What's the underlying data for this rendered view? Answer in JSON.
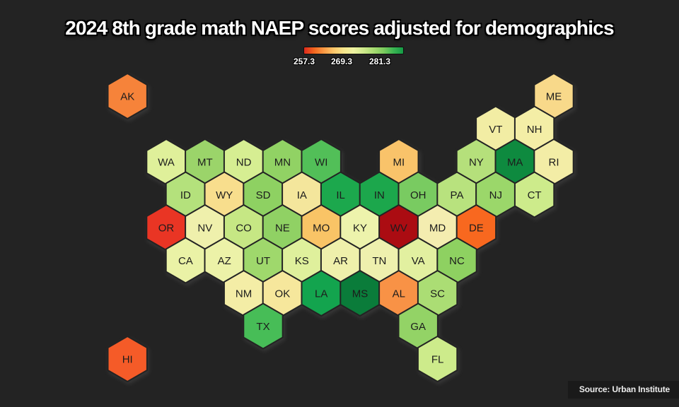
{
  "title": "2024 8th grade math NAEP scores adjusted for demographics",
  "source": "Source: Urban Institute",
  "legend": {
    "ticks": [
      "257.3",
      "269.3",
      "281.3"
    ],
    "gradient_colors": [
      "#dd2a1d",
      "#f2661f",
      "#fa9a44",
      "#fdc76b",
      "#f6e68c",
      "#eef2a2",
      "#cfe98c",
      "#a8db72",
      "#7ecb5f",
      "#3cb552",
      "#149a46"
    ]
  },
  "colors": {
    "background": "#232323",
    "hex_border": "#232323",
    "label_text": "#1c1c1c",
    "title_text": "#ffffff"
  },
  "chart_data": {
    "type": "heatmap",
    "subtype": "hex-tile-cartogram",
    "title": "2024 8th grade math NAEP scores adjusted for demographics",
    "colormap": "red-yellow-green",
    "scale_min": 257.3,
    "scale_mid": 269.3,
    "scale_max": 281.3,
    "values_estimated_from_color_scale": true,
    "states": [
      {
        "abbr": "AK",
        "row": 0,
        "col": 0,
        "color": "#f6833a",
        "score": 262.5
      },
      {
        "abbr": "ME",
        "row": 0,
        "col": 22,
        "color": "#f8d98a",
        "score": 266.5
      },
      {
        "abbr": "VT",
        "row": 1,
        "col": 19,
        "color": "#f2eda4",
        "score": 268.5
      },
      {
        "abbr": "NH",
        "row": 1,
        "col": 21,
        "color": "#f4eea6",
        "score": 268.5
      },
      {
        "abbr": "WA",
        "row": 2,
        "col": 2,
        "color": "#dff09a",
        "score": 270.5
      },
      {
        "abbr": "MT",
        "row": 2,
        "col": 4,
        "color": "#9bd46a",
        "score": 273.5
      },
      {
        "abbr": "ND",
        "row": 2,
        "col": 6,
        "color": "#d6ee92",
        "score": 271
      },
      {
        "abbr": "MN",
        "row": 2,
        "col": 8,
        "color": "#91d264",
        "score": 274
      },
      {
        "abbr": "WI",
        "row": 2,
        "col": 10,
        "color": "#52bf58",
        "score": 276
      },
      {
        "abbr": "MI",
        "row": 2,
        "col": 14,
        "color": "#f9c36a",
        "score": 265.5
      },
      {
        "abbr": "NY",
        "row": 2,
        "col": 18,
        "color": "#b5e07b",
        "score": 272.5
      },
      {
        "abbr": "MA",
        "row": 2,
        "col": 20,
        "color": "#0e8a3f",
        "score": 279.5
      },
      {
        "abbr": "RI",
        "row": 2,
        "col": 22,
        "color": "#f3eda6",
        "score": 268.5
      },
      {
        "abbr": "ID",
        "row": 3,
        "col": 3,
        "color": "#b4e17c",
        "score": 272.5
      },
      {
        "abbr": "WY",
        "row": 3,
        "col": 5,
        "color": "#f8de8d",
        "score": 267
      },
      {
        "abbr": "SD",
        "row": 3,
        "col": 7,
        "color": "#8ed162",
        "score": 274
      },
      {
        "abbr": "IA",
        "row": 3,
        "col": 9,
        "color": "#f4e69c",
        "score": 268
      },
      {
        "abbr": "IL",
        "row": 3,
        "col": 11,
        "color": "#1ca84d",
        "score": 277.5
      },
      {
        "abbr": "IN",
        "row": 3,
        "col": 13,
        "color": "#1ca74c",
        "score": 277.5
      },
      {
        "abbr": "OH",
        "row": 3,
        "col": 15,
        "color": "#79cb61",
        "score": 274.5
      },
      {
        "abbr": "PA",
        "row": 3,
        "col": 17,
        "color": "#b8e27e",
        "score": 272.5
      },
      {
        "abbr": "NJ",
        "row": 3,
        "col": 19,
        "color": "#9bd76a",
        "score": 273.5
      },
      {
        "abbr": "CT",
        "row": 3,
        "col": 21,
        "color": "#cdeb8b",
        "score": 271.5
      },
      {
        "abbr": "OR",
        "row": 4,
        "col": 2,
        "color": "#e93524",
        "score": 259
      },
      {
        "abbr": "NV",
        "row": 4,
        "col": 4,
        "color": "#eff0ac",
        "score": 269.5
      },
      {
        "abbr": "CO",
        "row": 4,
        "col": 6,
        "color": "#c6e784",
        "score": 272
      },
      {
        "abbr": "NE",
        "row": 4,
        "col": 8,
        "color": "#90d164",
        "score": 274
      },
      {
        "abbr": "MO",
        "row": 4,
        "col": 10,
        "color": "#f9c466",
        "score": 265.5
      },
      {
        "abbr": "KY",
        "row": 4,
        "col": 12,
        "color": "#edf3ac",
        "score": 269.5
      },
      {
        "abbr": "WV",
        "row": 4,
        "col": 14,
        "color": "#ab0c12",
        "score": 257.3
      },
      {
        "abbr": "MD",
        "row": 4,
        "col": 16,
        "color": "#f4edb0",
        "score": 269
      },
      {
        "abbr": "DE",
        "row": 4,
        "col": 18,
        "color": "#f8681f",
        "score": 261
      },
      {
        "abbr": "CA",
        "row": 5,
        "col": 3,
        "color": "#eaf2a6",
        "score": 269.5
      },
      {
        "abbr": "AZ",
        "row": 5,
        "col": 5,
        "color": "#ecf2a8",
        "score": 269.5
      },
      {
        "abbr": "UT",
        "row": 5,
        "col": 7,
        "color": "#9fd86c",
        "score": 273.5
      },
      {
        "abbr": "KS",
        "row": 5,
        "col": 9,
        "color": "#dff09c",
        "score": 270.5
      },
      {
        "abbr": "AR",
        "row": 5,
        "col": 11,
        "color": "#eff0ab",
        "score": 269.5
      },
      {
        "abbr": "TN",
        "row": 5,
        "col": 13,
        "color": "#eef0ae",
        "score": 269.5
      },
      {
        "abbr": "VA",
        "row": 5,
        "col": 15,
        "color": "#e2f0a0",
        "score": 270
      },
      {
        "abbr": "NC",
        "row": 5,
        "col": 17,
        "color": "#8ed161",
        "score": 274
      },
      {
        "abbr": "NM",
        "row": 6,
        "col": 6,
        "color": "#f4eda6",
        "score": 268.5
      },
      {
        "abbr": "OK",
        "row": 6,
        "col": 8,
        "color": "#f6e79c",
        "score": 268
      },
      {
        "abbr": "LA",
        "row": 6,
        "col": 10,
        "color": "#13a44e",
        "score": 278
      },
      {
        "abbr": "MS",
        "row": 6,
        "col": 12,
        "color": "#0a7c3a",
        "score": 280
      },
      {
        "abbr": "AL",
        "row": 6,
        "col": 14,
        "color": "#f89246",
        "score": 263.5
      },
      {
        "abbr": "SC",
        "row": 6,
        "col": 16,
        "color": "#abdd74",
        "score": 273
      },
      {
        "abbr": "TX",
        "row": 7,
        "col": 7,
        "color": "#47bd57",
        "score": 276.5
      },
      {
        "abbr": "GA",
        "row": 7,
        "col": 15,
        "color": "#93d366",
        "score": 274
      },
      {
        "abbr": "FL",
        "row": 8,
        "col": 16,
        "color": "#cdeb8b",
        "score": 271.5
      },
      {
        "abbr": "HI",
        "row": 8,
        "col": 0,
        "color": "#f55b28",
        "score": 260.5
      }
    ]
  }
}
